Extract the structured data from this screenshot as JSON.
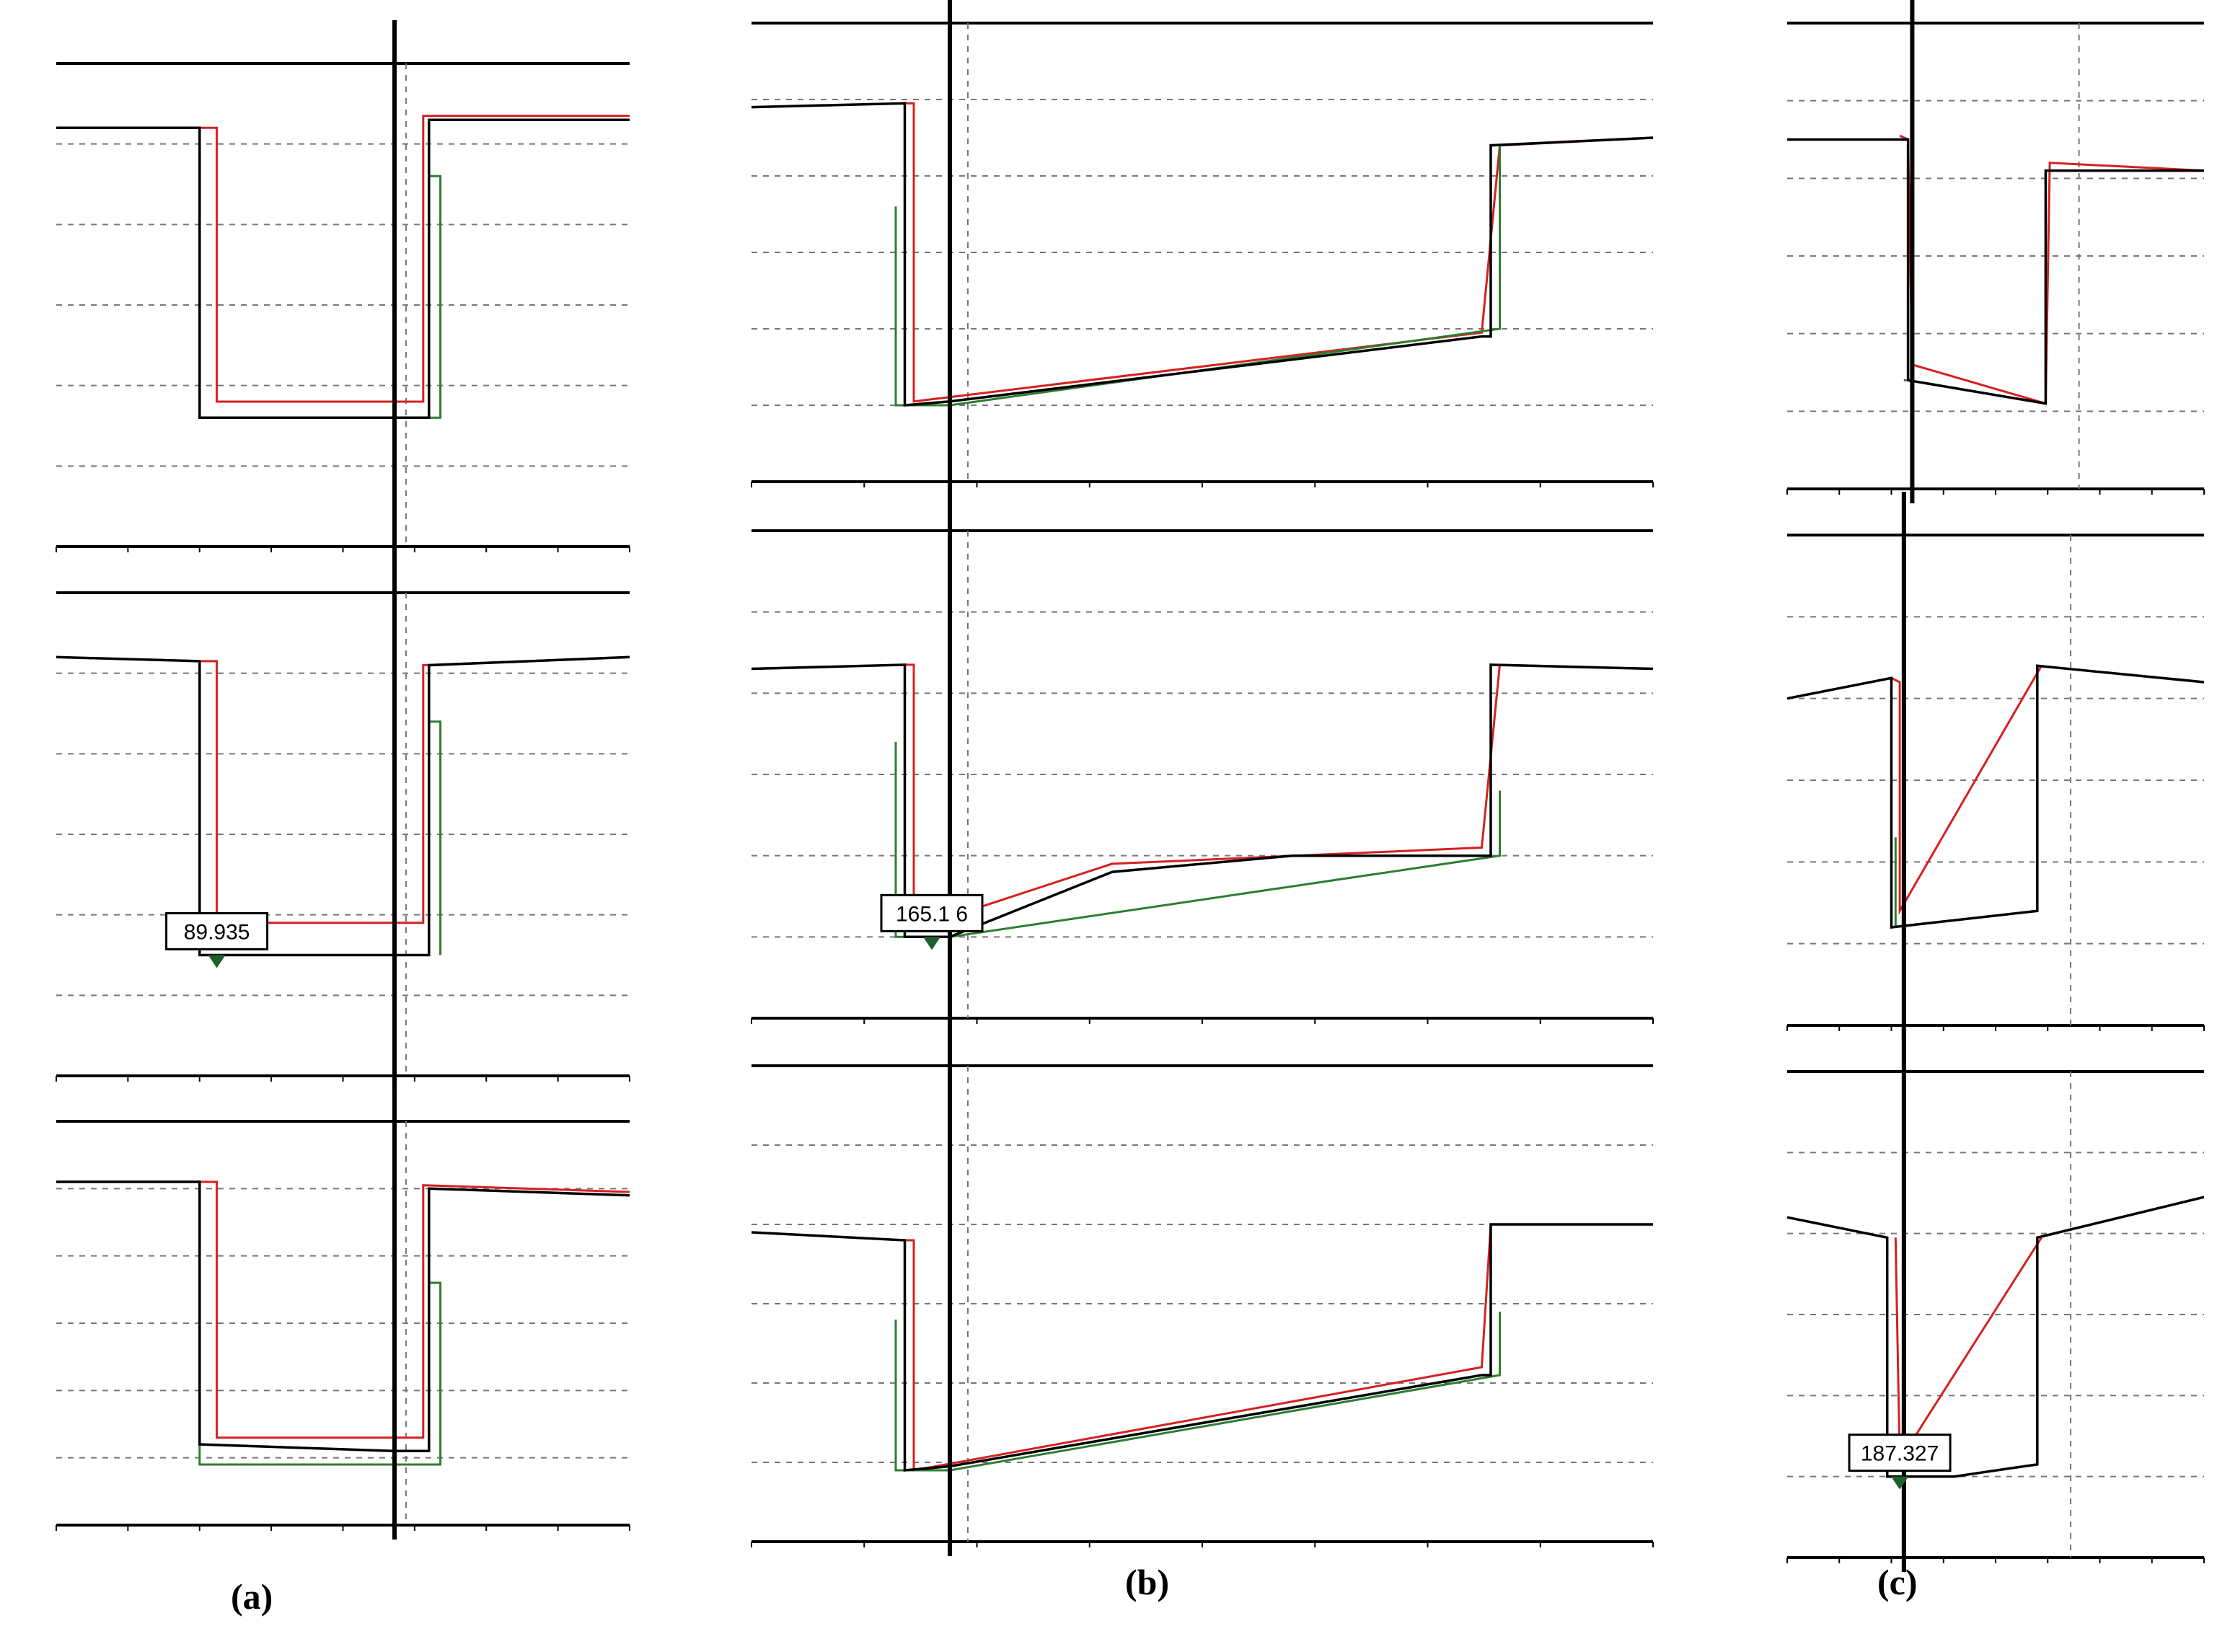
{
  "figure": {
    "labels": [
      "(a)",
      "(b)",
      "(c)"
    ]
  },
  "colors": {
    "trace_black": "#000000",
    "trace_red": "#d62020",
    "trace_green": "#2e7d32",
    "grid": "#777777",
    "axis": "#000000"
  },
  "chart_data": [
    {
      "id": "a1",
      "column": "(a)",
      "type": "line",
      "title": "",
      "xlabel": "",
      "ylabel": "",
      "grid": true,
      "legend": "none",
      "xlim": [
        0,
        100
      ],
      "ylim": [
        0,
        6
      ],
      "cursor_x": 59,
      "red_cursor_x": 61,
      "series": [
        {
          "color": "black",
          "values": [
            [
              0,
              5.2
            ],
            [
              25,
              5.2
            ],
            [
              25,
              1.6
            ],
            [
              59,
              1.6
            ],
            [
              59,
              1.6
            ],
            [
              65,
              1.6
            ],
            [
              65,
              5.3
            ],
            [
              100,
              5.3
            ]
          ]
        },
        {
          "color": "red",
          "values": [
            [
              25,
              5.2
            ],
            [
              28,
              5.2
            ],
            [
              28,
              1.8
            ],
            [
              64,
              1.8
            ],
            [
              64,
              5.35
            ],
            [
              100,
              5.35
            ]
          ]
        },
        {
          "color": "green",
          "values": [
            [
              25,
              1.6
            ],
            [
              25,
              1.6
            ],
            [
              67,
              1.6
            ],
            [
              67,
              4.6
            ],
            [
              65,
              4.6
            ]
          ]
        }
      ],
      "marker": null
    },
    {
      "id": "a2",
      "column": "(a)",
      "type": "line",
      "title": "",
      "xlabel": "",
      "ylabel": "",
      "grid": true,
      "legend": "none",
      "xlim": [
        0,
        100
      ],
      "ylim": [
        0,
        6
      ],
      "cursor_x": 59,
      "red_cursor_x": 61,
      "series": [
        {
          "color": "black",
          "values": [
            [
              0,
              5.2
            ],
            [
              25,
              5.15
            ],
            [
              25,
              1.5
            ],
            [
              59,
              1.5
            ],
            [
              65,
              1.5
            ],
            [
              65,
              5.1
            ],
            [
              100,
              5.2
            ]
          ]
        },
        {
          "color": "red",
          "values": [
            [
              25,
              5.15
            ],
            [
              28,
              5.15
            ],
            [
              28,
              1.9
            ],
            [
              64,
              1.9
            ],
            [
              64,
              5.1
            ],
            [
              100,
              5.2
            ]
          ]
        },
        {
          "color": "green",
          "values": [
            [
              67,
              1.5
            ],
            [
              67,
              4.4
            ],
            [
              65,
              4.4
            ]
          ]
        }
      ],
      "marker": {
        "x": 28,
        "y": 1.5,
        "label": "89.935"
      }
    },
    {
      "id": "a3",
      "column": "(a)",
      "type": "line",
      "title": "",
      "xlabel": "",
      "ylabel": "",
      "grid": true,
      "legend": "none",
      "xlim": [
        0,
        100
      ],
      "ylim": [
        0,
        6
      ],
      "cursor_x": 59,
      "red_cursor_x": 61,
      "series": [
        {
          "color": "black",
          "values": [
            [
              0,
              5.1
            ],
            [
              25,
              5.1
            ],
            [
              25,
              1.2
            ],
            [
              59,
              1.1
            ],
            [
              65,
              1.1
            ],
            [
              65,
              5.0
            ],
            [
              100,
              4.9
            ]
          ]
        },
        {
          "color": "red",
          "values": [
            [
              25,
              5.1
            ],
            [
              28,
              5.1
            ],
            [
              28,
              1.3
            ],
            [
              64,
              1.3
            ],
            [
              64,
              5.05
            ],
            [
              100,
              4.95
            ]
          ]
        },
        {
          "color": "green",
          "values": [
            [
              25,
              1.2
            ],
            [
              25,
              0.9
            ],
            [
              67,
              0.9
            ],
            [
              67,
              3.6
            ],
            [
              65,
              3.6
            ]
          ]
        }
      ],
      "marker": null
    },
    {
      "id": "b1",
      "column": "(b)",
      "type": "line",
      "title": "",
      "xlabel": "",
      "ylabel": "",
      "grid": true,
      "legend": "none",
      "xlim": [
        0,
        100
      ],
      "ylim": [
        0,
        6
      ],
      "cursor_x": 22,
      "red_cursor_x": 24,
      "series": [
        {
          "color": "black",
          "values": [
            [
              0,
              4.9
            ],
            [
              17,
              4.95
            ],
            [
              17,
              1.0
            ],
            [
              22,
              1.05
            ],
            [
              81,
              1.9
            ],
            [
              82,
              1.9
            ],
            [
              82,
              4.4
            ],
            [
              100,
              4.5
            ]
          ]
        },
        {
          "color": "red",
          "values": [
            [
              17,
              4.95
            ],
            [
              18,
              4.95
            ],
            [
              18,
              1.05
            ],
            [
              81,
              1.95
            ],
            [
              83,
              4.4
            ],
            [
              100,
              4.5
            ]
          ]
        },
        {
          "color": "green",
          "values": [
            [
              16,
              3.6
            ],
            [
              16,
              1.0
            ],
            [
              22,
              1.0
            ],
            [
              83,
              2.0
            ],
            [
              83,
              4.4
            ]
          ]
        }
      ],
      "marker": null
    },
    {
      "id": "b2",
      "column": "(b)",
      "type": "line",
      "title": "",
      "xlabel": "",
      "ylabel": "",
      "grid": true,
      "legend": "none",
      "xlim": [
        0,
        100
      ],
      "ylim": [
        0,
        6
      ],
      "cursor_x": 22,
      "red_cursor_x": 24,
      "series": [
        {
          "color": "black",
          "values": [
            [
              0,
              4.3
            ],
            [
              17,
              4.35
            ],
            [
              17,
              1.0
            ],
            [
              22,
              1.0
            ],
            [
              40,
              1.8
            ],
            [
              60,
              2.0
            ],
            [
              81,
              2.0
            ],
            [
              82,
              2.0
            ],
            [
              82,
              4.35
            ],
            [
              100,
              4.3
            ]
          ]
        },
        {
          "color": "red",
          "values": [
            [
              17,
              4.35
            ],
            [
              18,
              4.35
            ],
            [
              18,
              1.1
            ],
            [
              40,
              1.9
            ],
            [
              81,
              2.1
            ],
            [
              83,
              4.35
            ],
            [
              100,
              4.3
            ]
          ]
        },
        {
          "color": "green",
          "values": [
            [
              16,
              3.4
            ],
            [
              16,
              1.0
            ],
            [
              22,
              1.0
            ],
            [
              83,
              2.0
            ],
            [
              83,
              2.8
            ]
          ]
        }
      ],
      "marker": {
        "x": 20,
        "y": 1.0,
        "label": "165.1 6"
      }
    },
    {
      "id": "b3",
      "column": "(b)",
      "type": "line",
      "title": "",
      "xlabel": "",
      "ylabel": "",
      "grid": true,
      "legend": "none",
      "xlim": [
        0,
        100
      ],
      "ylim": [
        0,
        6
      ],
      "cursor_x": 22,
      "red_cursor_x": 24,
      "series": [
        {
          "color": "black",
          "values": [
            [
              0,
              3.9
            ],
            [
              17,
              3.8
            ],
            [
              17,
              0.9
            ],
            [
              22,
              0.95
            ],
            [
              81,
              2.1
            ],
            [
              82,
              2.1
            ],
            [
              82,
              4.0
            ],
            [
              100,
              4.0
            ]
          ]
        },
        {
          "color": "red",
          "values": [
            [
              17,
              3.8
            ],
            [
              18,
              3.8
            ],
            [
              18,
              0.9
            ],
            [
              81,
              2.2
            ],
            [
              82,
              4.0
            ],
            [
              100,
              4.0
            ]
          ]
        },
        {
          "color": "green",
          "values": [
            [
              16,
              2.8
            ],
            [
              16,
              0.9
            ],
            [
              22,
              0.9
            ],
            [
              83,
              2.1
            ],
            [
              83,
              2.9
            ]
          ]
        }
      ],
      "marker": null
    },
    {
      "id": "c1",
      "column": "(c)",
      "type": "line",
      "title": "",
      "xlabel": "",
      "ylabel": "",
      "grid": true,
      "legend": "none",
      "xlim": [
        0,
        100
      ],
      "ylim": [
        0,
        6
      ],
      "cursor_x": 30,
      "red_cursor_x": 70,
      "series": [
        {
          "color": "black",
          "values": [
            [
              0,
              4.5
            ],
            [
              29,
              4.5
            ],
            [
              29,
              1.4
            ],
            [
              62,
              1.1
            ],
            [
              62,
              4.1
            ],
            [
              100,
              4.1
            ]
          ]
        },
        {
          "color": "red",
          "values": [
            [
              27,
              4.55
            ],
            [
              29,
              4.5
            ],
            [
              30,
              1.6
            ],
            [
              62,
              1.1
            ],
            [
              63,
              4.2
            ],
            [
              100,
              4.1
            ]
          ]
        },
        {
          "color": "green",
          "values": [
            [
              28,
              1.4
            ],
            [
              30,
              1.4
            ]
          ]
        }
      ],
      "marker": null
    },
    {
      "id": "c2",
      "column": "(c)",
      "type": "line",
      "title": "",
      "xlabel": "",
      "ylabel": "",
      "grid": true,
      "legend": "none",
      "xlim": [
        0,
        100
      ],
      "ylim": [
        0,
        6
      ],
      "cursor_x": 28,
      "red_cursor_x": 68,
      "series": [
        {
          "color": "black",
          "values": [
            [
              0,
              4.0
            ],
            [
              25,
              4.25
            ],
            [
              25,
              1.2
            ],
            [
              60,
              1.4
            ],
            [
              60,
              4.4
            ],
            [
              100,
              4.2
            ]
          ]
        },
        {
          "color": "red",
          "values": [
            [
              25,
              4.25
            ],
            [
              27,
              4.2
            ],
            [
              27,
              1.4
            ],
            [
              61,
              4.4
            ]
          ]
        },
        {
          "color": "green",
          "values": [
            [
              26,
              2.3
            ],
            [
              26,
              1.2
            ]
          ]
        }
      ],
      "marker": null
    },
    {
      "id": "c3",
      "column": "(c)",
      "type": "line",
      "title": "",
      "xlabel": "",
      "ylabel": "",
      "grid": true,
      "legend": "none",
      "xlim": [
        0,
        100
      ],
      "ylim": [
        0,
        6
      ],
      "cursor_x": 28,
      "red_cursor_x": 68,
      "series": [
        {
          "color": "black",
          "values": [
            [
              0,
              4.2
            ],
            [
              24,
              3.95
            ],
            [
              24,
              1.0
            ],
            [
              40,
              1.0
            ],
            [
              60,
              1.15
            ],
            [
              60,
              3.95
            ],
            [
              100,
              4.45
            ]
          ]
        },
        {
          "color": "red",
          "values": [
            [
              26,
              3.95
            ],
            [
              27,
              1.2
            ],
            [
              61,
              3.95
            ]
          ]
        },
        {
          "color": "green",
          "values": [
            [
              26,
              1.0
            ],
            [
              27,
              0.9
            ]
          ]
        }
      ],
      "marker": {
        "x": 27,
        "y": 1.0,
        "label": "187.327"
      }
    }
  ]
}
